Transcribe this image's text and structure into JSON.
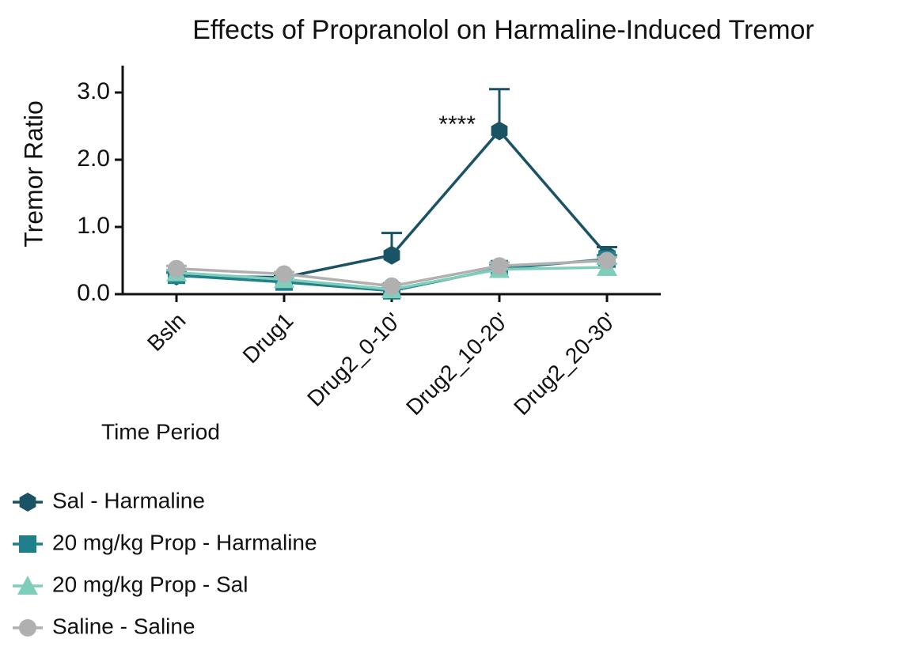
{
  "chart_data": {
    "type": "line",
    "title": "Effects of Propranolol on Harmaline-Induced Tremor",
    "x_label": "Time Period",
    "y_label": "Tremor Ratio",
    "annotation": "****",
    "categories": [
      "Bsln",
      "Drug1",
      "Drug2_0-10'",
      "Drug2_10-20'",
      "Drug2_20-30'"
    ],
    "ylim": [
      0,
      3.4
    ],
    "yticks": [
      {
        "value": 0,
        "label": "0.0"
      },
      {
        "value": 1,
        "label": "1.0"
      },
      {
        "value": 2,
        "label": "2.0"
      },
      {
        "value": 3,
        "label": "3.0"
      }
    ],
    "series": [
      {
        "name": "Sal - Harmaline",
        "color": "#1b5366",
        "marker": "hexagon",
        "values": [
          0.27,
          0.25,
          0.58,
          2.43,
          0.58
        ],
        "errors": [
          0.05,
          0.03,
          0.33,
          0.62,
          0.12
        ]
      },
      {
        "name": "20 mg/kg Prop - Harmaline",
        "color": "#1f7f8a",
        "marker": "square",
        "values": [
          0.28,
          0.18,
          0.05,
          0.38,
          0.52
        ],
        "errors": [
          0.04,
          0.03,
          0.03,
          0.05,
          0.06
        ]
      },
      {
        "name": "20 mg/kg Prop - Sal",
        "color": "#7fcdbb",
        "marker": "triangle",
        "values": [
          0.32,
          0.22,
          0.07,
          0.37,
          0.4
        ],
        "errors": [
          0.04,
          0.03,
          0.03,
          0.05,
          0.05
        ]
      },
      {
        "name": "Saline - Saline",
        "color": "#b0b0b0",
        "marker": "circle",
        "values": [
          0.38,
          0.3,
          0.12,
          0.42,
          0.5
        ],
        "errors": [
          0.04,
          0.03,
          0.03,
          0.05,
          0.05
        ]
      }
    ]
  }
}
